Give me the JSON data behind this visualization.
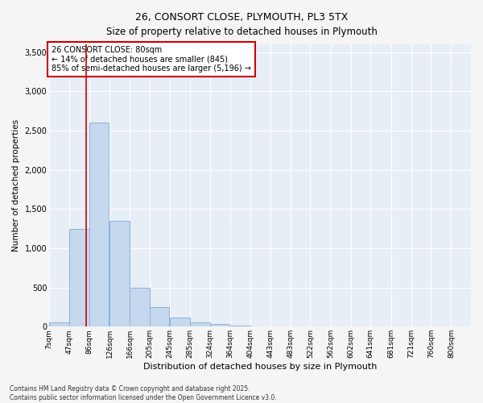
{
  "title_line1": "26, CONSORT CLOSE, PLYMOUTH, PL3 5TX",
  "title_line2": "Size of property relative to detached houses in Plymouth",
  "xlabel": "Distribution of detached houses by size in Plymouth",
  "ylabel": "Number of detached properties",
  "annotation_line1": "26 CONSORT CLOSE: 80sqm",
  "annotation_line2": "← 14% of detached houses are smaller (845)",
  "annotation_line3": "85% of semi-detached houses are larger (5,196) →",
  "property_size_sqm": 80,
  "bin_labels": [
    "7sqm",
    "47sqm",
    "86sqm",
    "126sqm",
    "166sqm",
    "205sqm",
    "245sqm",
    "285sqm",
    "324sqm",
    "364sqm",
    "404sqm",
    "443sqm",
    "483sqm",
    "522sqm",
    "562sqm",
    "602sqm",
    "641sqm",
    "681sqm",
    "721sqm",
    "760sqm",
    "800sqm"
  ],
  "bin_edges": [
    7,
    47,
    86,
    126,
    166,
    205,
    245,
    285,
    324,
    364,
    404,
    443,
    483,
    522,
    562,
    602,
    641,
    681,
    721,
    760,
    800
  ],
  "bin_width": 39,
  "bar_values": [
    50,
    1250,
    2600,
    1350,
    500,
    250,
    120,
    55,
    30,
    15,
    5,
    0,
    0,
    0,
    0,
    0,
    0,
    0,
    0,
    0
  ],
  "bar_color": "#c5d8ee",
  "bar_edge_color": "#89b4d9",
  "vline_color": "#cc0000",
  "vline_x": 80,
  "annotation_box_edgecolor": "#cc0000",
  "annotation_bg": "#ffffff",
  "axes_facecolor": "#e8eef6",
  "fig_facecolor": "#f5f5f5",
  "grid_color": "#ffffff",
  "ylim": [
    0,
    3600
  ],
  "yticks": [
    0,
    500,
    1000,
    1500,
    2000,
    2500,
    3000,
    3500
  ],
  "footer_line1": "Contains HM Land Registry data © Crown copyright and database right 2025.",
  "footer_line2": "Contains public sector information licensed under the Open Government Licence v3.0."
}
